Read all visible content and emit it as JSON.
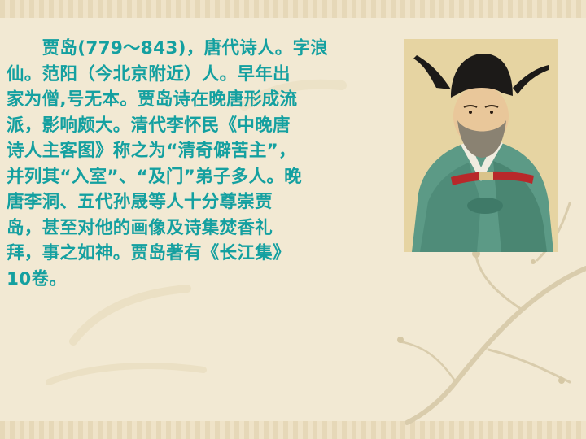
{
  "slide": {
    "paragraph_lines": [
      "　　贾岛(779～843)，唐代诗人。字浪",
      "仙。范阳（今北京附近）人。早年出",
      "家为僧,号无本。贾岛诗在晚唐形成流",
      "派，影响颇大。清代李怀民《中晚唐",
      "诗人主客图》称之为“清奇僻苦主”，",
      "并列其“入室”、“及门”弟子多人。晚",
      "唐李洞、五代孙晟等人十分尊崇贾",
      "岛，甚至对他的画像及诗集焚香礼",
      "拜，事之如神。贾岛著有《长江集》",
      "10卷。"
    ],
    "text_color": "#14a0a0",
    "background_color": "#f2e9d3",
    "portrait": {
      "icon": "portrait-of-jia-dao-icon"
    }
  }
}
